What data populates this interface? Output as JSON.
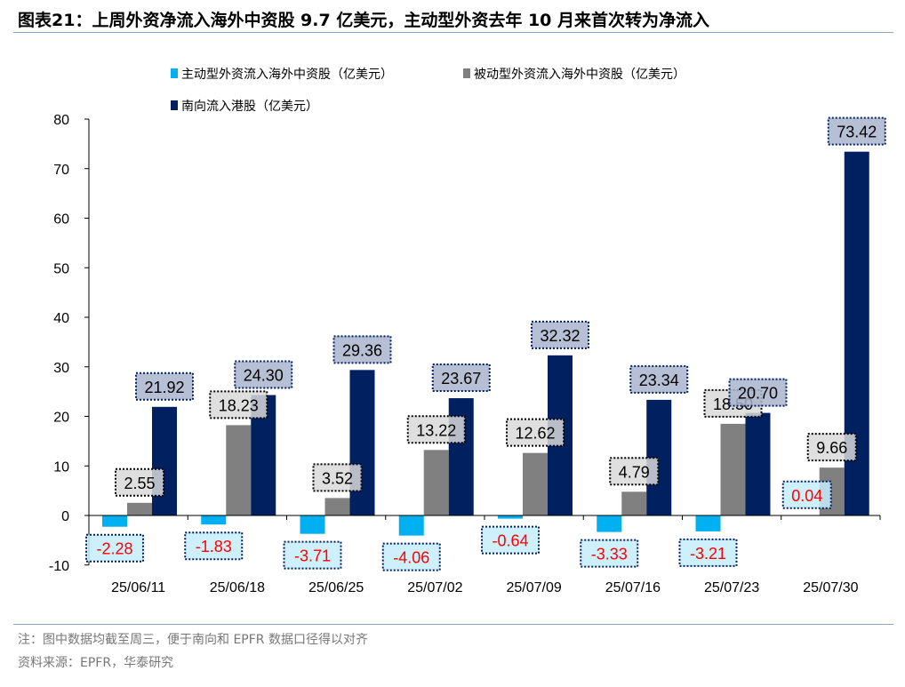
{
  "title": "图表21：上周外资净流入海外中资股 9.7 亿美元，主动型外资去年 10 月来首次转为净流入",
  "footer": {
    "note": "注：图中数据均截至周三，便于南向和 EPFR 数据口径得以对齐",
    "source": "资料来源：EPFR，华泰研究"
  },
  "chart_data": {
    "type": "bar",
    "categories": [
      "25/06/11",
      "25/06/18",
      "25/06/25",
      "25/07/02",
      "25/07/09",
      "25/07/16",
      "25/07/23",
      "25/07/30"
    ],
    "series": [
      {
        "name": "主动型外资流入海外中资股（亿美元）",
        "color": "#00b0f0",
        "values": [
          -2.28,
          -1.83,
          -3.71,
          -4.06,
          -0.64,
          -3.33,
          -3.21,
          0.04
        ]
      },
      {
        "name": "被动型外资流入海外中资股（亿美元）",
        "color": "#808080",
        "values": [
          2.55,
          18.23,
          3.52,
          13.22,
          12.62,
          4.79,
          18.5,
          9.66
        ]
      },
      {
        "name": "南向流入港股（亿美元）",
        "color": "#002060",
        "values": [
          21.92,
          24.3,
          29.36,
          23.67,
          32.32,
          23.34,
          20.7,
          73.42
        ]
      }
    ],
    "ylim": [
      -10,
      80
    ],
    "yticks": [
      -10,
      0,
      10,
      20,
      30,
      40,
      50,
      60,
      70,
      80
    ],
    "legend": "top",
    "grid": false
  }
}
